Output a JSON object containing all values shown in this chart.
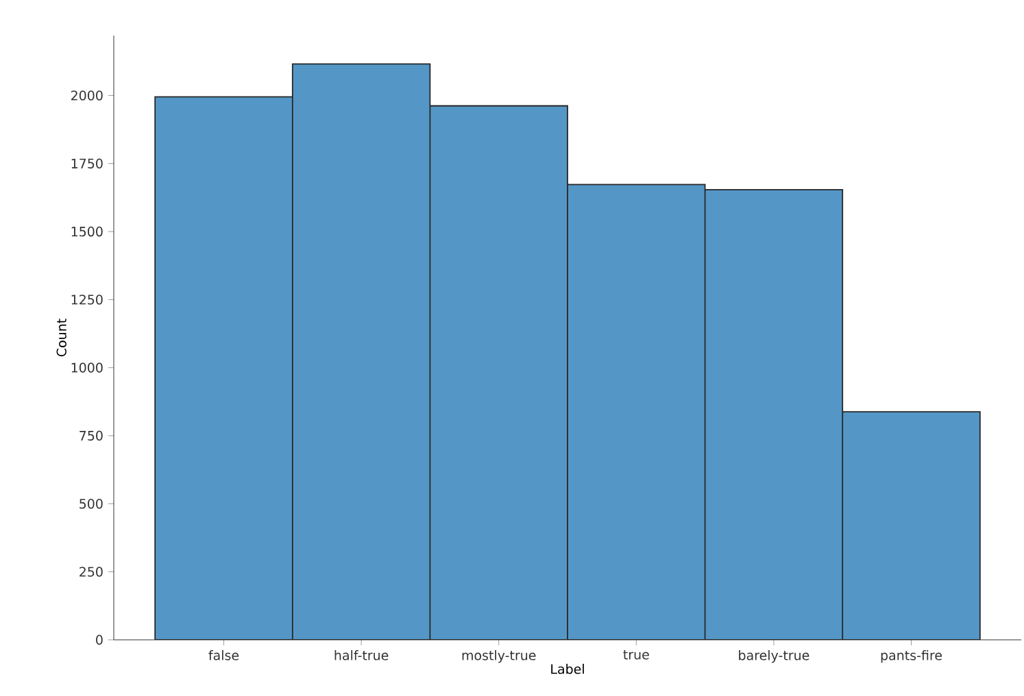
{
  "chart_data": {
    "type": "bar",
    "xlabel": "Label",
    "ylabel": "Count",
    "categories": [
      "false",
      "half-true",
      "mostly-true",
      "true",
      "barely-true",
      "pants-fire"
    ],
    "values": [
      1995,
      2116,
      1962,
      1673,
      1654,
      838
    ],
    "color": "#5497c6",
    "ylim": [
      0,
      2220
    ],
    "yticks": [
      0,
      250,
      500,
      750,
      1000,
      1250,
      1500,
      1750,
      2000
    ],
    "grid": false
  }
}
